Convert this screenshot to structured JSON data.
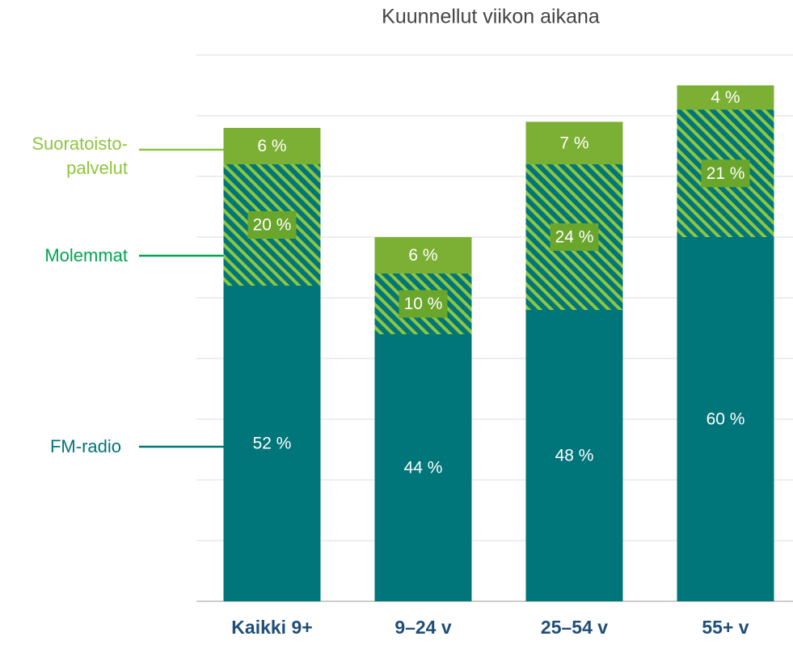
{
  "chart_data": {
    "type": "stacked-bar",
    "title": "Kuunnellut viikon aikana",
    "categories": [
      "Kaikki 9+",
      "9–24 v",
      "25–54 v",
      "55+ v"
    ],
    "series": [
      {
        "name": "FM-radio",
        "color": "#00757a",
        "values": [
          52,
          44,
          48,
          60
        ],
        "value_labels": [
          "52 %",
          "44 %",
          "48 %",
          "60 %"
        ]
      },
      {
        "name": "Molemmat",
        "color": "#00a550",
        "values": [
          20,
          10,
          24,
          21
        ],
        "value_labels": [
          "20 %",
          "10 %",
          "24 %",
          "21 %"
        ]
      },
      {
        "name": "Suoratoisto-palvelut",
        "color": "#7cb034",
        "values": [
          6,
          6,
          7,
          4
        ],
        "value_labels": [
          "6 %",
          "6 %",
          "7 %",
          "4 %"
        ]
      }
    ],
    "ylim": [
      0,
      90
    ],
    "yticks": [
      0,
      10,
      20,
      30,
      40,
      50,
      60,
      70,
      80,
      90
    ],
    "grid": true
  }
}
